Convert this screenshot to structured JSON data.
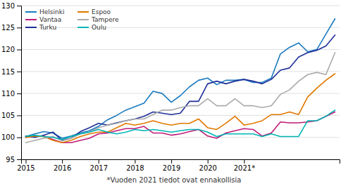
{
  "chart_data": {
    "type": "line",
    "categories": [
      "2015",
      null,
      null,
      null,
      "2016",
      null,
      null,
      null,
      "2017",
      null,
      null,
      null,
      "2018",
      null,
      null,
      null,
      "2019",
      null,
      null,
      null,
      "2020",
      null,
      null,
      null,
      "2021*",
      null,
      null,
      null,
      null,
      null,
      null,
      null,
      null,
      null,
      null
    ],
    "series": [
      {
        "name": "Helsinki",
        "color": "#1a7abf",
        "values": [
          100.2,
          100.8,
          101.3,
          101.0,
          99.8,
          100.3,
          101.0,
          101.5,
          102.5,
          104.0,
          105.0,
          106.2,
          107.0,
          107.8,
          110.5,
          110.0,
          108.0,
          109.5,
          111.5,
          113.0,
          113.5,
          112.0,
          113.0,
          113.0,
          113.2,
          112.5,
          112.5,
          113.5,
          119.0,
          120.5,
          121.5,
          119.5,
          120.0,
          123.5,
          127.0
        ]
      },
      {
        "name": "Vantaa",
        "color": "#bf1a7a",
        "values": [
          100.0,
          100.2,
          100.3,
          99.5,
          98.8,
          98.8,
          99.3,
          99.8,
          100.8,
          101.0,
          101.5,
          102.0,
          102.0,
          102.5,
          101.0,
          101.0,
          100.5,
          100.8,
          101.3,
          101.8,
          100.3,
          99.8,
          101.0,
          101.5,
          102.0,
          101.8,
          100.3,
          101.0,
          103.5,
          103.3,
          103.3,
          103.5,
          103.8,
          104.8,
          105.8
        ]
      },
      {
        "name": "Turku",
        "color": "#1e2f97",
        "values": [
          100.3,
          100.0,
          100.5,
          101.2,
          99.3,
          99.8,
          101.3,
          102.2,
          103.2,
          102.8,
          103.3,
          103.8,
          104.2,
          104.8,
          105.8,
          105.5,
          105.2,
          105.5,
          108.2,
          108.2,
          112.2,
          112.8,
          112.2,
          112.8,
          113.2,
          112.8,
          112.2,
          113.2,
          115.3,
          115.8,
          118.3,
          119.3,
          119.8,
          120.8,
          123.3
        ]
      },
      {
        "name": "Espoo",
        "color": "#e07800",
        "values": [
          100.0,
          100.3,
          100.2,
          99.3,
          98.8,
          99.3,
          100.2,
          100.8,
          101.2,
          101.2,
          102.2,
          103.2,
          102.8,
          103.2,
          103.8,
          103.2,
          102.8,
          103.2,
          103.2,
          104.2,
          102.2,
          101.8,
          103.2,
          104.8,
          102.8,
          103.2,
          103.8,
          105.2,
          105.2,
          105.8,
          105.2,
          109.2,
          111.2,
          113.0,
          114.5
        ]
      },
      {
        "name": "Tampere",
        "color": "#aaaaaa",
        "values": [
          98.8,
          99.3,
          99.8,
          100.2,
          99.2,
          99.8,
          100.8,
          101.2,
          102.2,
          102.8,
          103.2,
          103.8,
          104.2,
          104.2,
          105.2,
          106.2,
          106.2,
          106.8,
          107.2,
          107.2,
          108.8,
          107.2,
          107.2,
          108.8,
          107.2,
          107.2,
          106.8,
          107.2,
          109.8,
          110.8,
          112.8,
          114.3,
          114.8,
          114.3,
          119.3
        ]
      },
      {
        "name": "Oulu",
        "color": "#00b5b5",
        "values": [
          100.2,
          100.5,
          100.2,
          100.0,
          99.5,
          100.2,
          100.8,
          101.2,
          101.8,
          101.2,
          100.8,
          101.2,
          101.8,
          101.5,
          101.8,
          101.5,
          101.2,
          101.5,
          101.8,
          101.8,
          101.2,
          100.2,
          100.8,
          100.8,
          100.8,
          100.8,
          100.2,
          100.8,
          100.2,
          100.2,
          100.2,
          103.8,
          103.8,
          104.8,
          106.2
        ]
      }
    ],
    "ylim": [
      95,
      130
    ],
    "yticks": [
      95,
      100,
      105,
      110,
      115,
      120,
      125,
      130
    ],
    "grid": true,
    "legend": "upper left",
    "annotations": [
      "*Vuoden 2021 tiedot ovat ennakollisia"
    ]
  }
}
